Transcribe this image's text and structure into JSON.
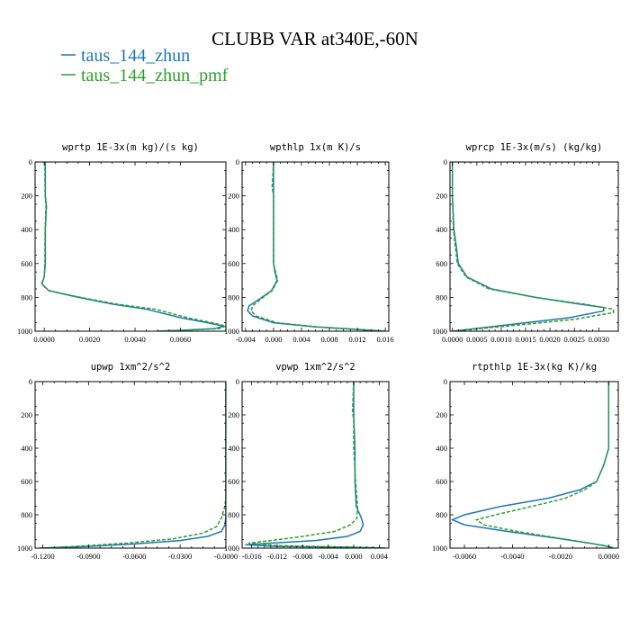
{
  "figure": {
    "title": "CLUBB VAR at340E,-60N",
    "legend": [
      {
        "label": "taus_144_zhun",
        "color": "#1f77b4",
        "style": "solid"
      },
      {
        "label": "taus_144_zhun_pmf",
        "color": "#2ca02c",
        "style": "dashed"
      }
    ]
  },
  "chart_data": [
    {
      "type": "line",
      "title": "wprtp  1E-3x(m kg)/(s kg)",
      "xlim": [
        -0.0004,
        0.008
      ],
      "ylim": [
        1000,
        0
      ],
      "xticks": [
        0.0,
        0.002,
        0.004,
        0.006
      ],
      "xtick_labels": [
        "0.0000",
        "0.0020",
        "0.0040",
        "0.0060"
      ],
      "yticks": [
        0,
        200,
        400,
        600,
        800,
        1000
      ],
      "ytick_labels": [
        "0",
        "200",
        "400",
        "600",
        "800",
        "1000"
      ],
      "series": [
        {
          "name": "taus_144_zhun",
          "points": [
            [
              5e-05,
              0
            ],
            [
              5e-05,
              200
            ],
            [
              0.0001,
              260
            ],
            [
              5e-05,
              400
            ],
            [
              5e-05,
              600
            ],
            [
              0.0,
              680
            ],
            [
              -0.0001,
              720
            ],
            [
              0.0002,
              760
            ],
            [
              0.0015,
              800
            ],
            [
              0.003,
              840
            ],
            [
              0.0045,
              870
            ],
            [
              0.006,
              920
            ],
            [
              0.0072,
              950
            ],
            [
              0.0079,
              970
            ],
            [
              0.0075,
              985
            ],
            [
              0.006,
              995
            ],
            [
              0.005,
              1000
            ]
          ]
        },
        {
          "name": "taus_144_zhun_pmf",
          "points": [
            [
              3e-05,
              0
            ],
            [
              4e-05,
              200
            ],
            [
              8e-05,
              260
            ],
            [
              4e-05,
              400
            ],
            [
              3e-05,
              600
            ],
            [
              0.0,
              680
            ],
            [
              -0.00012,
              720
            ],
            [
              0.0002,
              760
            ],
            [
              0.0016,
              800
            ],
            [
              0.0032,
              840
            ],
            [
              0.0049,
              870
            ],
            [
              0.0063,
              920
            ],
            [
              0.0074,
              950
            ],
            [
              0.008,
              970
            ],
            [
              0.0077,
              985
            ],
            [
              0.0062,
              995
            ],
            [
              0.005,
              1000
            ]
          ]
        }
      ]
    },
    {
      "type": "line",
      "title": "wpthlp  1x(m K)/s",
      "xlim": [
        -0.0045,
        0.0165
      ],
      "ylim": [
        1000,
        0
      ],
      "xticks": [
        -0.004,
        0.0,
        0.004,
        0.008,
        0.012,
        0.016
      ],
      "xtick_labels": [
        "-0.004",
        "0.000",
        "0.004",
        "0.008",
        "0.012",
        "0.016"
      ],
      "yticks": [
        0,
        200,
        400,
        600,
        800,
        1000
      ],
      "ytick_labels": [
        "0",
        "200",
        "400",
        "600",
        "800",
        "1000"
      ],
      "series": [
        {
          "name": "taus_144_zhun",
          "points": [
            [
              0.0,
              0
            ],
            [
              0.0,
              200
            ],
            [
              0.0,
              400
            ],
            [
              0.0,
              600
            ],
            [
              0.0002,
              650
            ],
            [
              0.0005,
              700
            ],
            [
              -0.0003,
              760
            ],
            [
              -0.002,
              810
            ],
            [
              -0.0035,
              850
            ],
            [
              -0.0037,
              880
            ],
            [
              -0.003,
              910
            ],
            [
              0.0,
              950
            ],
            [
              0.006,
              975
            ],
            [
              0.012,
              990
            ],
            [
              0.016,
              1000
            ]
          ]
        },
        {
          "name": "taus_144_zhun_pmf",
          "points": [
            [
              0.0,
              0
            ],
            [
              -0.0002,
              150
            ],
            [
              0.0,
              200
            ],
            [
              0.0,
              400
            ],
            [
              0.0,
              600
            ],
            [
              0.0003,
              650
            ],
            [
              0.0006,
              700
            ],
            [
              -0.0002,
              760
            ],
            [
              -0.0018,
              810
            ],
            [
              -0.003,
              850
            ],
            [
              -0.0032,
              880
            ],
            [
              -0.0025,
              910
            ],
            [
              0.0005,
              950
            ],
            [
              0.0065,
              975
            ],
            [
              0.0125,
              990
            ],
            [
              0.016,
              1000
            ]
          ]
        }
      ]
    },
    {
      "type": "line",
      "title": "wprcp  1E-3x(m/s) (kg/kg)",
      "xlim": [
        -5e-05,
        0.0034
      ],
      "ylim": [
        1000,
        0
      ],
      "xticks": [
        0.0,
        0.0005,
        0.001,
        0.0015,
        0.002,
        0.0025,
        0.003
      ],
      "xtick_labels": [
        "0.0000",
        "0.0005",
        "0.0010",
        "0.0015",
        "0.0020",
        "0.0025",
        "0.0030"
      ],
      "yticks": [
        0,
        200,
        400,
        600,
        800,
        1000
      ],
      "ytick_labels": [
        "0",
        "200",
        "400",
        "600",
        "800",
        "1000"
      ],
      "series": [
        {
          "name": "taus_144_zhun",
          "points": [
            [
              0.0,
              0
            ],
            [
              0.0,
              200
            ],
            [
              3e-05,
              400
            ],
            [
              8e-05,
              500
            ],
            [
              0.00012,
              600
            ],
            [
              0.0003,
              680
            ],
            [
              0.0008,
              750
            ],
            [
              0.0017,
              800
            ],
            [
              0.0026,
              840
            ],
            [
              0.0031,
              860
            ],
            [
              0.0031,
              880
            ],
            [
              0.0024,
              920
            ],
            [
              0.0012,
              960
            ],
            [
              0.0003,
              990
            ],
            [
              0.0,
              1000
            ]
          ]
        },
        {
          "name": "taus_144_zhun_pmf",
          "points": [
            [
              0.0,
              0
            ],
            [
              0.0,
              200
            ],
            [
              2e-05,
              400
            ],
            [
              6e-05,
              500
            ],
            [
              0.0001,
              600
            ],
            [
              0.00028,
              680
            ],
            [
              0.00075,
              750
            ],
            [
              0.0017,
              800
            ],
            [
              0.0027,
              840
            ],
            [
              0.0033,
              870
            ],
            [
              0.0033,
              890
            ],
            [
              0.0025,
              930
            ],
            [
              0.0013,
              965
            ],
            [
              0.0003,
              992
            ],
            [
              0.0,
              1000
            ]
          ]
        }
      ]
    },
    {
      "type": "line",
      "title": "upwp  1xm^2/s^2",
      "xlim": [
        -0.125,
        0.0
      ],
      "ylim": [
        1000,
        0
      ],
      "xticks": [
        -0.12,
        -0.09,
        -0.06,
        -0.03,
        0.0
      ],
      "xtick_labels": [
        "-0.1200",
        "-0.0900",
        "-0.0600",
        "-0.0300",
        "-0.0000"
      ],
      "yticks": [
        0,
        200,
        400,
        600,
        800,
        1000
      ],
      "ytick_labels": [
        "0",
        "200",
        "400",
        "600",
        "800",
        "1000"
      ],
      "series": [
        {
          "name": "taus_144_zhun",
          "points": [
            [
              0.0,
              0
            ],
            [
              0.0,
              200
            ],
            [
              0.0,
              400
            ],
            [
              0.0,
              600
            ],
            [
              0.0,
              700
            ],
            [
              0.0,
              800
            ],
            [
              -0.0005,
              860
            ],
            [
              -0.003,
              900
            ],
            [
              -0.012,
              930
            ],
            [
              -0.03,
              955
            ],
            [
              -0.06,
              975
            ],
            [
              -0.09,
              990
            ],
            [
              -0.122,
              1000
            ]
          ]
        },
        {
          "name": "taus_144_zhun_pmf",
          "points": [
            [
              0.0,
              0
            ],
            [
              0.0,
              200
            ],
            [
              0.0,
              400
            ],
            [
              0.0,
              600
            ],
            [
              0.0,
              700
            ],
            [
              -0.001,
              760
            ],
            [
              -0.003,
              820
            ],
            [
              -0.006,
              870
            ],
            [
              -0.015,
              910
            ],
            [
              -0.035,
              945
            ],
            [
              -0.065,
              970
            ],
            [
              -0.095,
              988
            ],
            [
              -0.12,
              1000
            ]
          ]
        }
      ]
    },
    {
      "type": "line",
      "title": "vpwp  1xm^2/s^2",
      "xlim": [
        -0.0175,
        0.0055
      ],
      "ylim": [
        1000,
        0
      ],
      "xticks": [
        -0.016,
        -0.012,
        -0.008,
        -0.004,
        0.0,
        0.004
      ],
      "xtick_labels": [
        "-0.016",
        "-0.012",
        "-0.008",
        "-0.004",
        "0.000",
        "0.004"
      ],
      "yticks": [
        0,
        200,
        400,
        600,
        800,
        1000
      ],
      "ytick_labels": [
        "0",
        "200",
        "400",
        "600",
        "800",
        "1000"
      ],
      "series": [
        {
          "name": "taus_144_zhun",
          "points": [
            [
              0.0,
              0
            ],
            [
              0.0,
              200
            ],
            [
              0.0002,
              400
            ],
            [
              0.0002,
              600
            ],
            [
              0.0004,
              750
            ],
            [
              0.0012,
              820
            ],
            [
              0.0015,
              860
            ],
            [
              0.001,
              900
            ],
            [
              -0.001,
              930
            ],
            [
              -0.006,
              955
            ],
            [
              -0.013,
              970
            ],
            [
              -0.017,
              980
            ],
            [
              -0.012,
              990
            ],
            [
              0.0,
              995
            ],
            [
              0.005,
              1000
            ]
          ]
        },
        {
          "name": "taus_144_zhun_pmf",
          "points": [
            [
              0.0,
              0
            ],
            [
              -0.0002,
              180
            ],
            [
              0.0,
              230
            ],
            [
              0.0,
              400
            ],
            [
              0.0003,
              600
            ],
            [
              0.0006,
              750
            ],
            [
              0.0005,
              820
            ],
            [
              -0.0005,
              860
            ],
            [
              -0.003,
              900
            ],
            [
              -0.008,
              930
            ],
            [
              -0.013,
              955
            ],
            [
              -0.0165,
              970
            ],
            [
              -0.012,
              985
            ],
            [
              0.0,
              995
            ],
            [
              0.005,
              1000
            ]
          ]
        }
      ]
    },
    {
      "type": "line",
      "title": "rtpthlp  1E-3x(kg K)/kg",
      "xlim": [
        -0.0066,
        0.0004
      ],
      "ylim": [
        1000,
        0
      ],
      "xticks": [
        -0.006,
        -0.004,
        -0.002,
        0.0
      ],
      "xtick_labels": [
        "-0.0060",
        "-0.0040",
        "-0.0020",
        "0.0000"
      ],
      "yticks": [
        0,
        200,
        400,
        600,
        800,
        1000
      ],
      "ytick_labels": [
        "0",
        "200",
        "400",
        "600",
        "800",
        "1000"
      ],
      "series": [
        {
          "name": "taus_144_zhun",
          "points": [
            [
              0.0,
              0
            ],
            [
              0.0,
              200
            ],
            [
              0.0,
              400
            ],
            [
              -0.0002,
              500
            ],
            [
              -0.0005,
              600
            ],
            [
              -0.0012,
              650
            ],
            [
              -0.0025,
              700
            ],
            [
              -0.0045,
              750
            ],
            [
              -0.006,
              800
            ],
            [
              -0.0065,
              830
            ],
            [
              -0.006,
              860
            ],
            [
              -0.0042,
              900
            ],
            [
              -0.0022,
              940
            ],
            [
              -0.0008,
              970
            ],
            [
              0.0,
              990
            ],
            [
              0.0002,
              1000
            ]
          ]
        },
        {
          "name": "taus_144_zhun_pmf",
          "points": [
            [
              0.0,
              0
            ],
            [
              0.0,
              200
            ],
            [
              0.0,
              400
            ],
            [
              -0.0002,
              500
            ],
            [
              -0.0005,
              600
            ],
            [
              -0.001,
              650
            ],
            [
              -0.0018,
              700
            ],
            [
              -0.0032,
              750
            ],
            [
              -0.0047,
              800
            ],
            [
              -0.0055,
              830
            ],
            [
              -0.0052,
              860
            ],
            [
              -0.0038,
              900
            ],
            [
              -0.0021,
              940
            ],
            [
              -0.0008,
              970
            ],
            [
              0.0,
              990
            ],
            [
              0.0002,
              1000
            ]
          ]
        }
      ]
    }
  ]
}
